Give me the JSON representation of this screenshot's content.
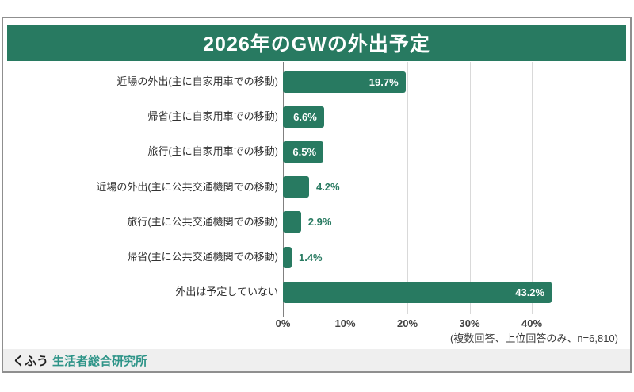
{
  "title": "2026年のGWの外出予定",
  "chart_data": {
    "type": "bar",
    "orientation": "horizontal",
    "title": "2026年のGWの外出予定",
    "categories": [
      "近場の外出(主に自家用車での移動)",
      "帰省(主に自家用車での移動)",
      "旅行(主に自家用車での移動)",
      "近場の外出(主に公共交通機関での移動)",
      "旅行(主に公共交通機関での移動)",
      "帰省(主に公共交通機関での移動)",
      "外出は予定していない"
    ],
    "values": [
      19.7,
      6.6,
      6.5,
      4.2,
      2.9,
      1.4,
      43.2
    ],
    "value_labels": [
      "19.7%",
      "6.6%",
      "6.5%",
      "4.2%",
      "2.9%",
      "1.4%",
      "43.2%"
    ],
    "xlabel": "",
    "ylabel": "",
    "xlim": [
      0,
      45
    ],
    "x_ticks": [
      {
        "value": 0,
        "label": "0%"
      },
      {
        "value": 10,
        "label": "10%"
      },
      {
        "value": 20,
        "label": "20%"
      },
      {
        "value": 30,
        "label": "30%"
      },
      {
        "value": 40,
        "label": "40%"
      }
    ],
    "grid": true,
    "legend": false,
    "bar_color": "#287a61",
    "note": "(複数回答、上位回答のみ、n=6,810)"
  },
  "footer": {
    "brand": "くふう",
    "lab": "生活者総合研究所"
  },
  "colors": {
    "accent_green": "#287a61",
    "logo_teal": "#2e9488",
    "footer_bg": "#efefef",
    "frame_border": "#8f8f8f",
    "gridline": "#d9d9d9",
    "axis_line": "#808080"
  }
}
